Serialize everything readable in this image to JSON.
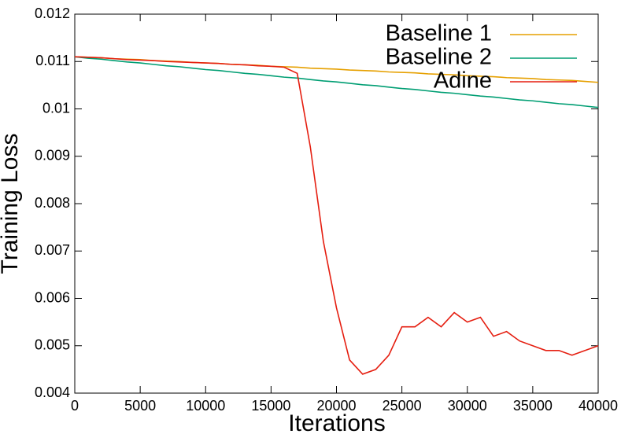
{
  "chart_data": {
    "type": "line",
    "x_label": "Iterations",
    "y_label": "Training Loss",
    "x": [
      0,
      1000,
      2000,
      3000,
      4000,
      5000,
      6000,
      7000,
      8000,
      9000,
      10000,
      11000,
      12000,
      13000,
      14000,
      15000,
      16000,
      17000,
      18000,
      19000,
      20000,
      21000,
      22000,
      23000,
      24000,
      25000,
      26000,
      27000,
      28000,
      29000,
      30000,
      31000,
      32000,
      33000,
      34000,
      35000,
      36000,
      37000,
      38000,
      39000,
      40000
    ],
    "series": [
      {
        "name": "Baseline 1",
        "color": "#e6a000",
        "values": [
          0.0111,
          0.01109,
          0.01108,
          0.01106,
          0.01105,
          0.01104,
          0.01102,
          0.01101,
          0.011,
          0.01098,
          0.01097,
          0.01096,
          0.01094,
          0.01093,
          0.01092,
          0.0109,
          0.01089,
          0.01088,
          0.01086,
          0.01085,
          0.01084,
          0.01082,
          0.01081,
          0.0108,
          0.01078,
          0.01077,
          0.01076,
          0.01074,
          0.01073,
          0.01072,
          0.0107,
          0.01069,
          0.01068,
          0.01066,
          0.01065,
          0.01064,
          0.01062,
          0.01061,
          0.0106,
          0.01058,
          0.01056
        ]
      },
      {
        "name": "Baseline 2",
        "color": "#009e73",
        "values": [
          0.0111,
          0.01107,
          0.01105,
          0.01102,
          0.01099,
          0.01097,
          0.01094,
          0.01091,
          0.01089,
          0.01086,
          0.01083,
          0.01081,
          0.01078,
          0.01075,
          0.01073,
          0.0107,
          0.01067,
          0.01065,
          0.01062,
          0.01059,
          0.01057,
          0.01054,
          0.01051,
          0.01049,
          0.01046,
          0.01043,
          0.01041,
          0.01038,
          0.01035,
          0.01033,
          0.0103,
          0.01027,
          0.01025,
          0.01022,
          0.01019,
          0.01017,
          0.01014,
          0.01011,
          0.01009,
          0.01006,
          0.01003
        ]
      },
      {
        "name": "Adine",
        "color": "#e51e10",
        "values": [
          0.0111,
          0.01109,
          0.01108,
          0.01106,
          0.01104,
          0.01103,
          0.01102,
          0.011,
          0.01099,
          0.01098,
          0.01097,
          0.01096,
          0.01094,
          0.01093,
          0.01091,
          0.0109,
          0.01088,
          0.01075,
          0.0092,
          0.0072,
          0.0058,
          0.0047,
          0.0044,
          0.0045,
          0.0048,
          0.0054,
          0.0054,
          0.0056,
          0.0054,
          0.0057,
          0.0055,
          0.0056,
          0.0052,
          0.0053,
          0.0051,
          0.005,
          0.0049,
          0.0049,
          0.0048,
          0.0049,
          0.005
        ]
      }
    ],
    "xlim": [
      0,
      40000
    ],
    "xticks": [
      0,
      5000,
      10000,
      15000,
      20000,
      25000,
      30000,
      35000,
      40000
    ],
    "ylim": [
      0.004,
      0.012
    ],
    "yticks": [
      0.004,
      0.005,
      0.006,
      0.007,
      0.008,
      0.009,
      0.01,
      0.011,
      0.012
    ],
    "legend": "top-right"
  }
}
